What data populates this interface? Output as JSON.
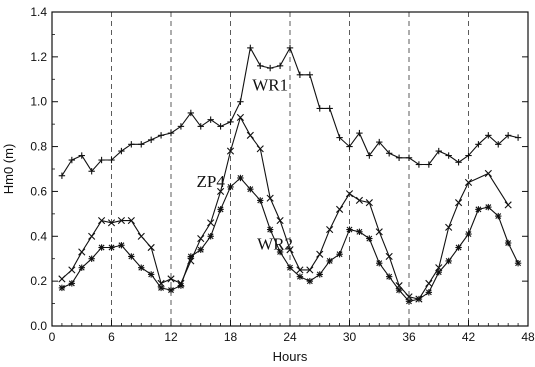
{
  "chart_data": {
    "type": "line",
    "title": "",
    "xlabel": "Hours",
    "ylabel": "Hm0 (m)",
    "xlim": [
      0,
      48
    ],
    "ylim": [
      0.0,
      1.4
    ],
    "xticks": [
      0,
      6,
      12,
      18,
      24,
      30,
      36,
      42,
      48
    ],
    "yticks": [
      "0.0",
      "0.2",
      "0.4",
      "0.6",
      "0.8",
      "1.0",
      "1.2",
      "1.4"
    ],
    "grid": "vertical dashed at x ticks",
    "legend": "inline labels",
    "series": [
      {
        "name": "WR1",
        "marker": "plus",
        "x": [
          1,
          2,
          3,
          4,
          5,
          6,
          7,
          8,
          9,
          10,
          11,
          12,
          13,
          14,
          15,
          16,
          17,
          18,
          19,
          20,
          21,
          22,
          23,
          24,
          25,
          26,
          27,
          28,
          29,
          30,
          31,
          32,
          33,
          34,
          35,
          36,
          37,
          38,
          39,
          40,
          41,
          42,
          43,
          44,
          45,
          46,
          47
        ],
        "y": [
          0.67,
          0.74,
          0.76,
          0.69,
          0.74,
          0.74,
          0.78,
          0.81,
          0.81,
          0.83,
          0.85,
          0.86,
          0.89,
          0.95,
          0.89,
          0.92,
          0.89,
          0.91,
          1.0,
          1.24,
          1.16,
          1.15,
          1.16,
          1.24,
          1.12,
          1.12,
          0.97,
          0.97,
          0.84,
          0.8,
          0.86,
          0.76,
          0.82,
          0.77,
          0.75,
          0.75,
          0.72,
          0.72,
          0.78,
          0.76,
          0.73,
          0.76,
          0.81,
          0.85,
          0.81,
          0.85,
          0.84
        ]
      },
      {
        "name": "ZP4",
        "marker": "x",
        "x": [
          1,
          2,
          3,
          4,
          5,
          6,
          7,
          8,
          9,
          10,
          11,
          12,
          13,
          14,
          15,
          16,
          17,
          18,
          19,
          20,
          21,
          22,
          23,
          24,
          25,
          26,
          27,
          28,
          29,
          30,
          31,
          32,
          33,
          34,
          35,
          36,
          37,
          38,
          39,
          40,
          41,
          42,
          44,
          46
        ],
        "y": [
          0.21,
          0.25,
          0.33,
          0.4,
          0.47,
          0.46,
          0.47,
          0.47,
          0.4,
          0.35,
          0.19,
          0.21,
          0.19,
          0.29,
          0.39,
          0.46,
          0.6,
          0.78,
          0.93,
          0.85,
          0.79,
          0.57,
          0.47,
          0.34,
          0.25,
          0.25,
          0.32,
          0.43,
          0.52,
          0.59,
          0.56,
          0.55,
          0.42,
          0.31,
          0.18,
          0.13,
          0.12,
          0.19,
          0.26,
          0.44,
          0.55,
          0.64,
          0.68,
          0.54
        ]
      },
      {
        "name": "WR2",
        "marker": "asterisk",
        "x": [
          1,
          2,
          3,
          4,
          5,
          6,
          7,
          8,
          9,
          10,
          11,
          12,
          13,
          14,
          15,
          16,
          17,
          18,
          19,
          20,
          21,
          22,
          23,
          24,
          25,
          26,
          27,
          28,
          29,
          30,
          31,
          32,
          33,
          34,
          35,
          36,
          37,
          38,
          39,
          40,
          41,
          42,
          43,
          44,
          45,
          46,
          47
        ],
        "y": [
          0.17,
          0.19,
          0.26,
          0.3,
          0.35,
          0.35,
          0.36,
          0.31,
          0.26,
          0.23,
          0.17,
          0.16,
          0.18,
          0.31,
          0.34,
          0.4,
          0.52,
          0.62,
          0.66,
          0.61,
          0.56,
          0.43,
          0.33,
          0.26,
          0.22,
          0.2,
          0.23,
          0.29,
          0.32,
          0.43,
          0.42,
          0.39,
          0.28,
          0.22,
          0.16,
          0.11,
          0.12,
          0.15,
          0.24,
          0.29,
          0.35,
          0.41,
          0.52,
          0.53,
          0.49,
          0.37,
          0.28
        ]
      }
    ],
    "labels": [
      {
        "text": "WR1",
        "x": 22.0,
        "y": 1.05
      },
      {
        "text": "ZP4",
        "x": 16.0,
        "y": 0.62
      },
      {
        "text": "WR2",
        "x": 22.5,
        "y": 0.34
      }
    ]
  }
}
